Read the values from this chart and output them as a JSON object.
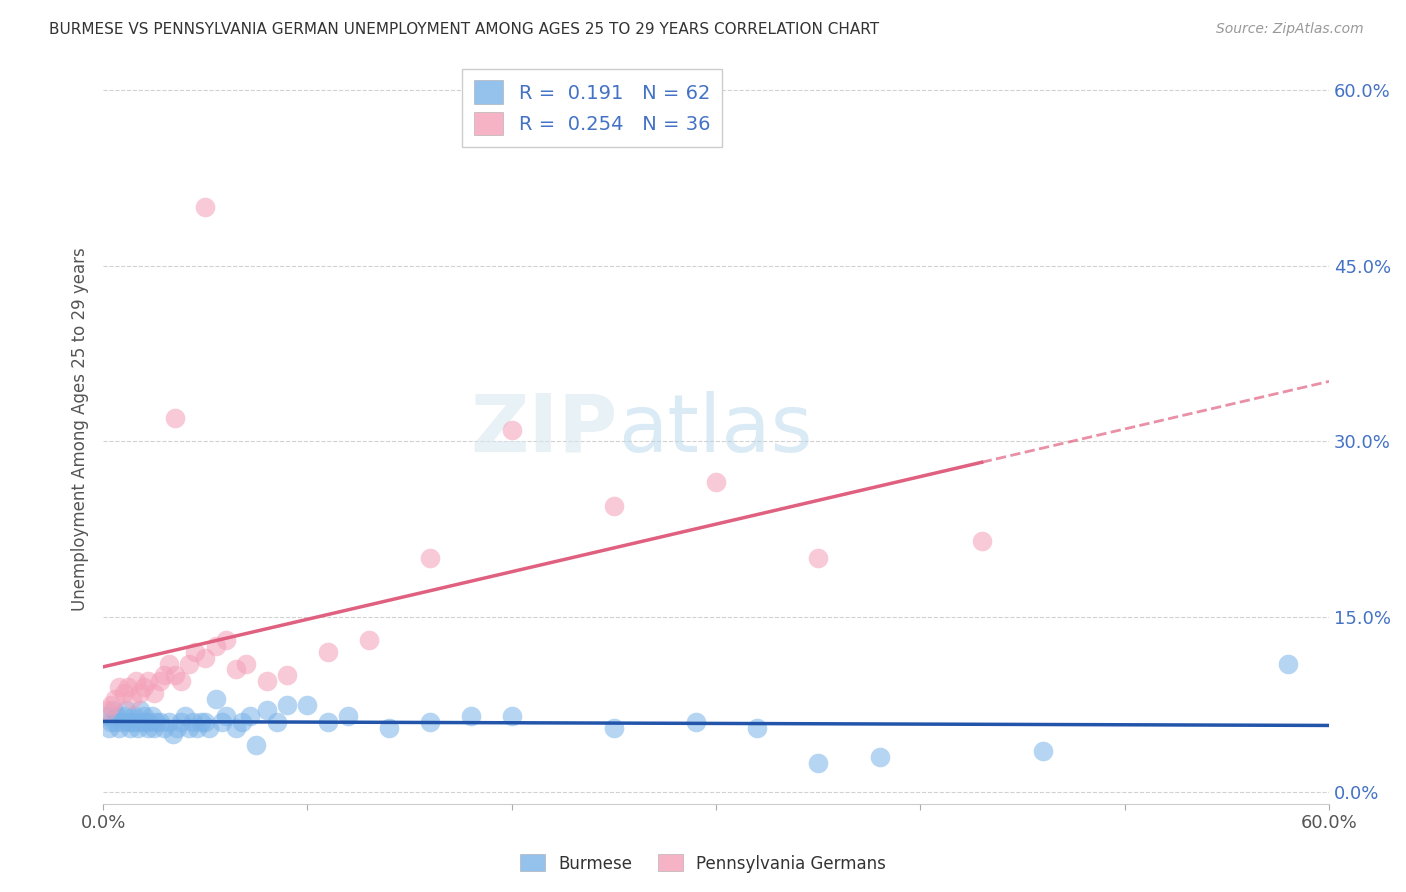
{
  "title": "BURMESE VS PENNSYLVANIA GERMAN UNEMPLOYMENT AMONG AGES 25 TO 29 YEARS CORRELATION CHART",
  "source": "Source: ZipAtlas.com",
  "ylabel": "Unemployment Among Ages 25 to 29 years",
  "xlim": [
    0.0,
    0.6
  ],
  "ylim": [
    -0.01,
    0.63
  ],
  "yticks": [
    0.0,
    0.15,
    0.3,
    0.45,
    0.6
  ],
  "ytick_labels": [
    "0.0%",
    "15.0%",
    "30.0%",
    "45.0%",
    "60.0%"
  ],
  "xtick_vals": [
    0.0,
    0.1,
    0.2,
    0.3,
    0.4,
    0.5,
    0.6
  ],
  "xtick_labels": [
    "0.0%",
    "",
    "",
    "",
    "",
    "",
    "60.0%"
  ],
  "burmese_R": 0.191,
  "burmese_N": 62,
  "pg_R": 0.254,
  "pg_N": 36,
  "burmese_color": "#7ab3e8",
  "pg_color": "#f4a0b8",
  "burmese_line_color": "#2255aa",
  "pg_line_color": "#e06080",
  "watermark_zip": "ZIP",
  "watermark_atlas": "atlas",
  "background_color": "#ffffff",
  "burmese_x": [
    0.002,
    0.003,
    0.004,
    0.005,
    0.006,
    0.007,
    0.008,
    0.009,
    0.01,
    0.011,
    0.012,
    0.013,
    0.014,
    0.015,
    0.016,
    0.017,
    0.018,
    0.019,
    0.02,
    0.021,
    0.022,
    0.023,
    0.024,
    0.025,
    0.026,
    0.028,
    0.03,
    0.032,
    0.034,
    0.036,
    0.038,
    0.04,
    0.042,
    0.044,
    0.046,
    0.048,
    0.05,
    0.052,
    0.055,
    0.058,
    0.06,
    0.065,
    0.068,
    0.072,
    0.075,
    0.08,
    0.085,
    0.09,
    0.1,
    0.11,
    0.12,
    0.14,
    0.16,
    0.18,
    0.2,
    0.25,
    0.29,
    0.32,
    0.35,
    0.38,
    0.46,
    0.58
  ],
  "burmese_y": [
    0.065,
    0.055,
    0.06,
    0.07,
    0.06,
    0.065,
    0.055,
    0.06,
    0.065,
    0.07,
    0.06,
    0.055,
    0.06,
    0.065,
    0.06,
    0.055,
    0.07,
    0.06,
    0.065,
    0.06,
    0.055,
    0.06,
    0.065,
    0.055,
    0.06,
    0.06,
    0.055,
    0.06,
    0.05,
    0.055,
    0.06,
    0.065,
    0.055,
    0.06,
    0.055,
    0.06,
    0.06,
    0.055,
    0.08,
    0.06,
    0.065,
    0.055,
    0.06,
    0.065,
    0.04,
    0.07,
    0.06,
    0.075,
    0.075,
    0.06,
    0.065,
    0.055,
    0.06,
    0.065,
    0.065,
    0.055,
    0.06,
    0.055,
    0.025,
    0.03,
    0.035,
    0.11
  ],
  "pg_x": [
    0.002,
    0.004,
    0.006,
    0.008,
    0.01,
    0.012,
    0.014,
    0.016,
    0.018,
    0.02,
    0.022,
    0.025,
    0.028,
    0.03,
    0.032,
    0.035,
    0.038,
    0.042,
    0.045,
    0.05,
    0.055,
    0.06,
    0.065,
    0.07,
    0.08,
    0.09,
    0.11,
    0.13,
    0.16,
    0.2,
    0.25,
    0.3,
    0.35,
    0.43,
    0.05,
    0.035
  ],
  "pg_y": [
    0.07,
    0.075,
    0.08,
    0.09,
    0.085,
    0.09,
    0.08,
    0.095,
    0.085,
    0.09,
    0.095,
    0.085,
    0.095,
    0.1,
    0.11,
    0.1,
    0.095,
    0.11,
    0.12,
    0.115,
    0.125,
    0.13,
    0.105,
    0.11,
    0.095,
    0.1,
    0.12,
    0.13,
    0.2,
    0.31,
    0.245,
    0.265,
    0.2,
    0.215,
    0.5,
    0.32
  ]
}
